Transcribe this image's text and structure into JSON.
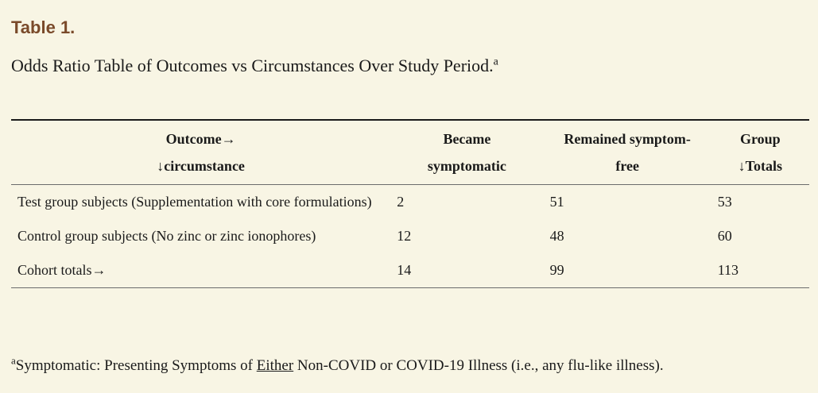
{
  "table_label": "Table 1.",
  "caption": {
    "text": "Odds Ratio Table of Outcomes vs Circumstances Over Study Period.",
    "footnote_marker": "a"
  },
  "table": {
    "headers": [
      {
        "line1": "Outcome→",
        "line2": "↓circumstance"
      },
      {
        "line1": "Became",
        "line2": "symptomatic"
      },
      {
        "line1": "Remained symptom-",
        "line2": "free"
      },
      {
        "line1": "Group",
        "line2": "↓Totals"
      }
    ],
    "rows": [
      {
        "circumstance": "Test group subjects (Supplementation with core formulations)",
        "became_symptomatic": "2",
        "remained_symptom_free": "51",
        "group_totals": "53"
      },
      {
        "circumstance": "Control group subjects (No zinc or zinc ionophores)",
        "became_symptomatic": "12",
        "remained_symptom_free": "48",
        "group_totals": "60"
      },
      {
        "circumstance": "Cohort totals→",
        "became_symptomatic": "14",
        "remained_symptom_free": "99",
        "group_totals": "113"
      }
    ]
  },
  "footnote": {
    "marker": "a",
    "prefix": "Symptomatic: Presenting Symptoms of ",
    "emphasis": "Either",
    "suffix": " Non-COVID or COVID-19 Illness (i.e., any flu-like illness)."
  },
  "colors": {
    "background": "#f8f5e4",
    "label": "#7a4a2a",
    "text": "#1a1a1a"
  }
}
